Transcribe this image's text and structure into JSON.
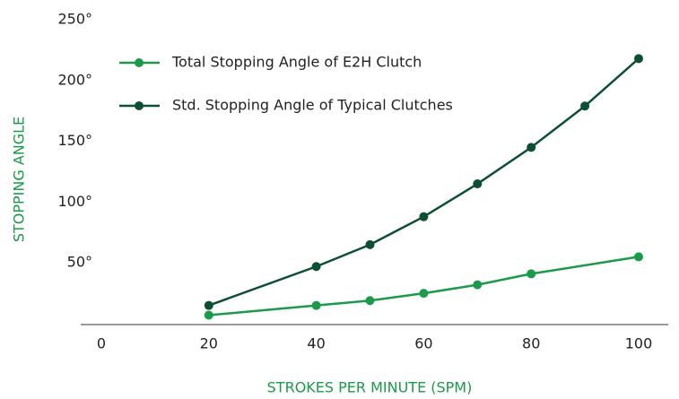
{
  "chart_data": {
    "type": "line",
    "x_label": "STROKES PER MINUTE (SPM)",
    "y_label": "STOPPING ANGLE",
    "series": [
      {
        "name": "Total Stopping Angle of E2H Clutch",
        "color": "#1a9a4a",
        "x": [
          20,
          40,
          50,
          60,
          70,
          80,
          100
        ],
        "values": [
          7,
          15,
          19,
          25,
          32,
          41,
          55
        ]
      },
      {
        "name": "Std. Stopping Angle of Typical Clutches",
        "color": "#0d4f32",
        "x": [
          20,
          40,
          50,
          60,
          70,
          80,
          90,
          100
        ],
        "values": [
          15,
          47,
          65,
          88,
          115,
          145,
          179,
          218
        ]
      }
    ],
    "xlim": [
      0,
      100
    ],
    "xticks": [
      0,
      20,
      40,
      60,
      80,
      100
    ],
    "ylim": [
      0,
      250
    ],
    "yticks": [
      {
        "value": 50,
        "label": "50°"
      },
      {
        "value": 100,
        "label": "100°"
      },
      {
        "value": 150,
        "label": "150°"
      },
      {
        "value": 200,
        "label": "200°"
      },
      {
        "value": 250,
        "label": "250°"
      }
    ],
    "grid": false,
    "legend": "upper left"
  }
}
